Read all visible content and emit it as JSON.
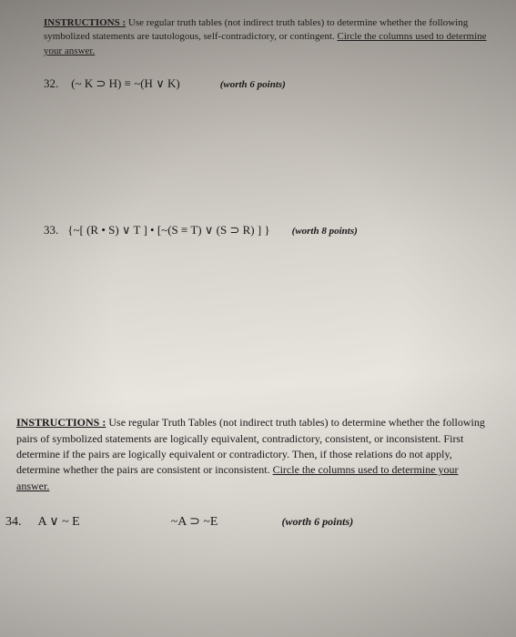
{
  "instructions_top": {
    "label": "INSTRUCTIONS :",
    "text_part1": "Use regular truth tables (not indirect truth tables) to determine whether the following symbolized statements are tautologous, self-contradictory, or contingent.",
    "text_underlined": "Circle the columns used to determine your answer."
  },
  "problem32": {
    "number": "32.",
    "formula": "(~ K ⊃ H) ≡ ~(H ∨ K)",
    "points": "(worth 6 points)"
  },
  "problem33": {
    "number": "33.",
    "formula": "{~[ (R • S) ∨ T ] • [~(S ≡ T) ∨ (S ⊃ R) ] }",
    "points": "(worth 8 points)"
  },
  "instructions_bottom": {
    "label": "INSTRUCTIONS :",
    "text_part1": "Use regular Truth Tables (not indirect truth tables) to determine whether the following pairs of symbolized statements are logically equivalent, contradictory, consistent, or inconsistent. First determine if the pairs are logically equivalent or contradictory. Then, if those relations do not apply, determine whether the pairs are consistent or inconsistent.",
    "text_underlined": "Circle the columns used to determine your answer."
  },
  "problem34": {
    "number": "34.",
    "formula1": "A ∨ ~ E",
    "formula2": "~A ⊃ ~E",
    "points": "(worth 6 points)"
  }
}
